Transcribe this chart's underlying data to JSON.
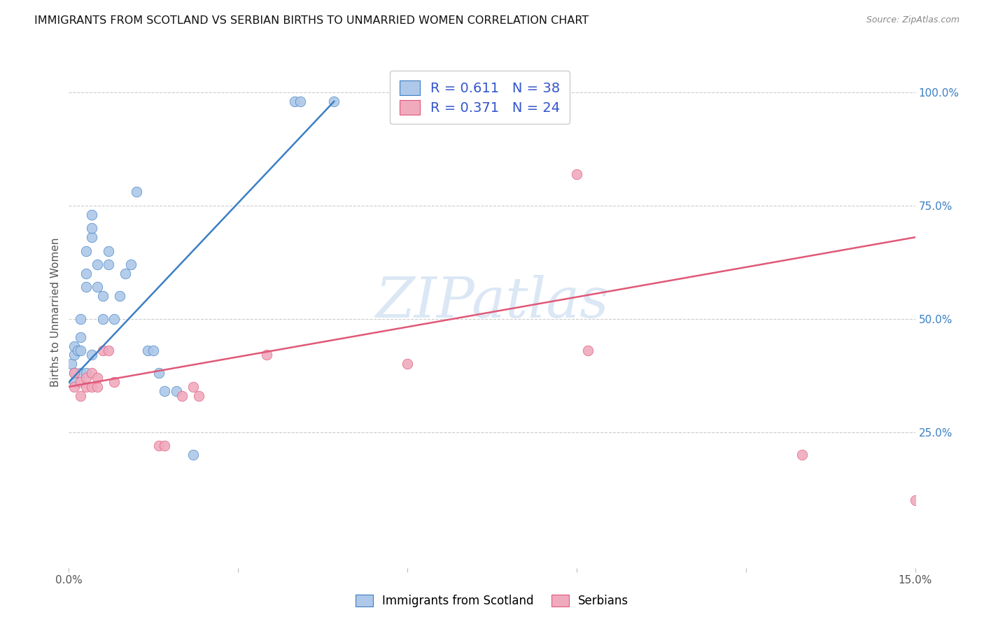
{
  "title": "IMMIGRANTS FROM SCOTLAND VS SERBIAN BIRTHS TO UNMARRIED WOMEN CORRELATION CHART",
  "source": "Source: ZipAtlas.com",
  "ylabel": "Births to Unmarried Women",
  "xlim": [
    0.0,
    0.15
  ],
  "ylim": [
    -0.05,
    1.08
  ],
  "xticks": [
    0.0,
    0.03,
    0.06,
    0.09,
    0.12,
    0.15
  ],
  "xtick_labels": [
    "0.0%",
    "",
    "",
    "",
    "",
    "15.0%"
  ],
  "ytick_vals_right": [
    0.25,
    0.5,
    0.75,
    1.0
  ],
  "ytick_labels_right": [
    "25.0%",
    "50.0%",
    "75.0%",
    "100.0%"
  ],
  "blue_scatter_x": [
    0.0005,
    0.001,
    0.001,
    0.001,
    0.001,
    0.0015,
    0.002,
    0.002,
    0.002,
    0.002,
    0.003,
    0.003,
    0.003,
    0.003,
    0.004,
    0.004,
    0.004,
    0.004,
    0.005,
    0.005,
    0.006,
    0.006,
    0.007,
    0.007,
    0.008,
    0.009,
    0.01,
    0.011,
    0.012,
    0.014,
    0.015,
    0.016,
    0.017,
    0.019,
    0.022,
    0.04,
    0.041,
    0.047
  ],
  "blue_scatter_y": [
    0.4,
    0.38,
    0.42,
    0.44,
    0.36,
    0.43,
    0.43,
    0.46,
    0.5,
    0.38,
    0.57,
    0.6,
    0.65,
    0.38,
    0.68,
    0.7,
    0.73,
    0.42,
    0.57,
    0.62,
    0.5,
    0.55,
    0.62,
    0.65,
    0.5,
    0.55,
    0.6,
    0.62,
    0.78,
    0.43,
    0.43,
    0.38,
    0.34,
    0.34,
    0.2,
    0.98,
    0.98,
    0.98
  ],
  "pink_scatter_x": [
    0.001,
    0.001,
    0.002,
    0.002,
    0.003,
    0.003,
    0.004,
    0.004,
    0.005,
    0.005,
    0.006,
    0.007,
    0.008,
    0.016,
    0.017,
    0.02,
    0.022,
    0.023,
    0.035,
    0.06,
    0.09,
    0.092,
    0.13,
    0.15
  ],
  "pink_scatter_y": [
    0.38,
    0.35,
    0.36,
    0.33,
    0.35,
    0.37,
    0.35,
    0.38,
    0.35,
    0.37,
    0.43,
    0.43,
    0.36,
    0.22,
    0.22,
    0.33,
    0.35,
    0.33,
    0.42,
    0.4,
    0.82,
    0.43,
    0.2,
    0.1
  ],
  "blue_line_x": [
    0.0,
    0.047
  ],
  "blue_line_y": [
    0.36,
    0.98
  ],
  "pink_line_x": [
    0.0,
    0.15
  ],
  "pink_line_y": [
    0.35,
    0.68
  ],
  "legend_blue_label": "R = 0.611   N = 38",
  "legend_pink_label": "R = 0.371   N = 24",
  "blue_scatter_color": "#adc8e8",
  "blue_line_color": "#3b7fc4",
  "pink_scatter_color": "#f0aabe",
  "pink_line_color": "#e05878",
  "legend_text_color": "#3355cc",
  "watermark_color": "#b8d0ea",
  "background_color": "#ffffff",
  "grid_color": "#cccccc",
  "axis_color": "#555555"
}
